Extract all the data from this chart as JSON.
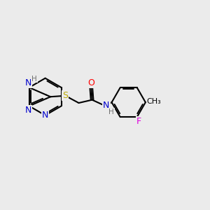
{
  "background_color": "#ebebeb",
  "bond_color": "#000000",
  "bond_width": 1.5,
  "atom_colors": {
    "N": "#0000cc",
    "O": "#ff0000",
    "S": "#bbaa00",
    "F": "#dd00dd",
    "H": "#707070",
    "C": "#000000"
  },
  "font_size": 9,
  "font_size_small": 7.5
}
